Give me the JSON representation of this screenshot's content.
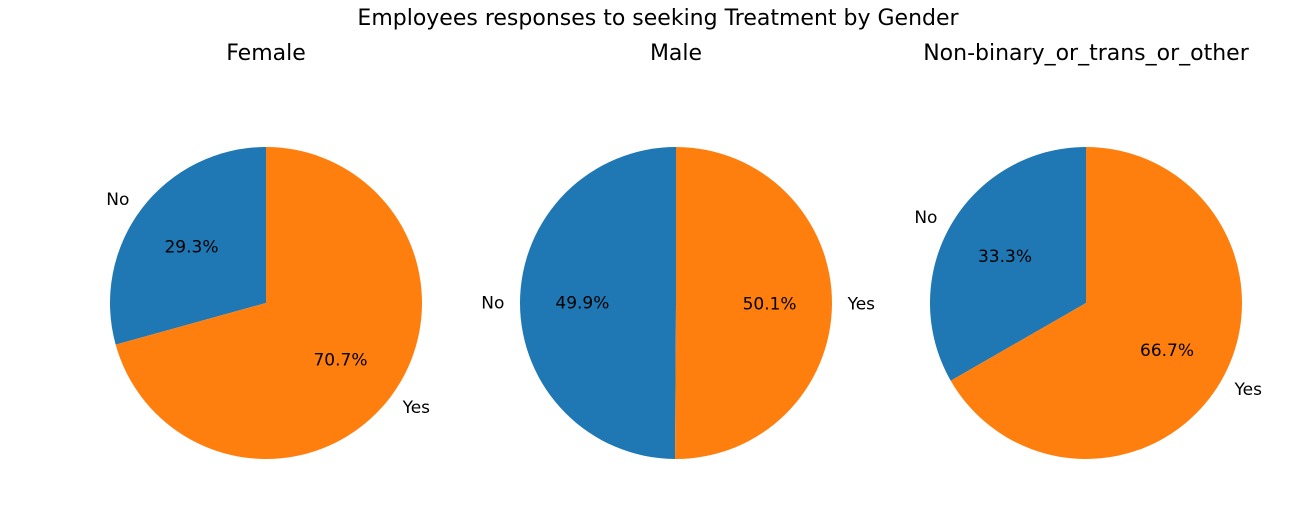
{
  "chart_data": {
    "type": "pie",
    "title": "Employees responses to seeking Treatment by Gender",
    "colors": {
      "No": "#1f77b4",
      "Yes": "#ff7f0e"
    },
    "pies": [
      {
        "title": "Female",
        "slices": [
          {
            "label": "No",
            "value": 29.3,
            "pct_label": "29.3%",
            "color": "#1f77b4"
          },
          {
            "label": "Yes",
            "value": 70.7,
            "pct_label": "70.7%",
            "color": "#ff7f0e"
          }
        ]
      },
      {
        "title": "Male",
        "slices": [
          {
            "label": "No",
            "value": 49.9,
            "pct_label": "49.9%",
            "color": "#1f77b4"
          },
          {
            "label": "Yes",
            "value": 50.1,
            "pct_label": "50.1%",
            "color": "#ff7f0e"
          }
        ]
      },
      {
        "title": "Non-binary_or_trans_or_other",
        "slices": [
          {
            "label": "No",
            "value": 33.3,
            "pct_label": "33.3%",
            "color": "#1f77b4"
          },
          {
            "label": "Yes",
            "value": 66.7,
            "pct_label": "66.7%",
            "color": "#ff7f0e"
          }
        ]
      }
    ]
  }
}
